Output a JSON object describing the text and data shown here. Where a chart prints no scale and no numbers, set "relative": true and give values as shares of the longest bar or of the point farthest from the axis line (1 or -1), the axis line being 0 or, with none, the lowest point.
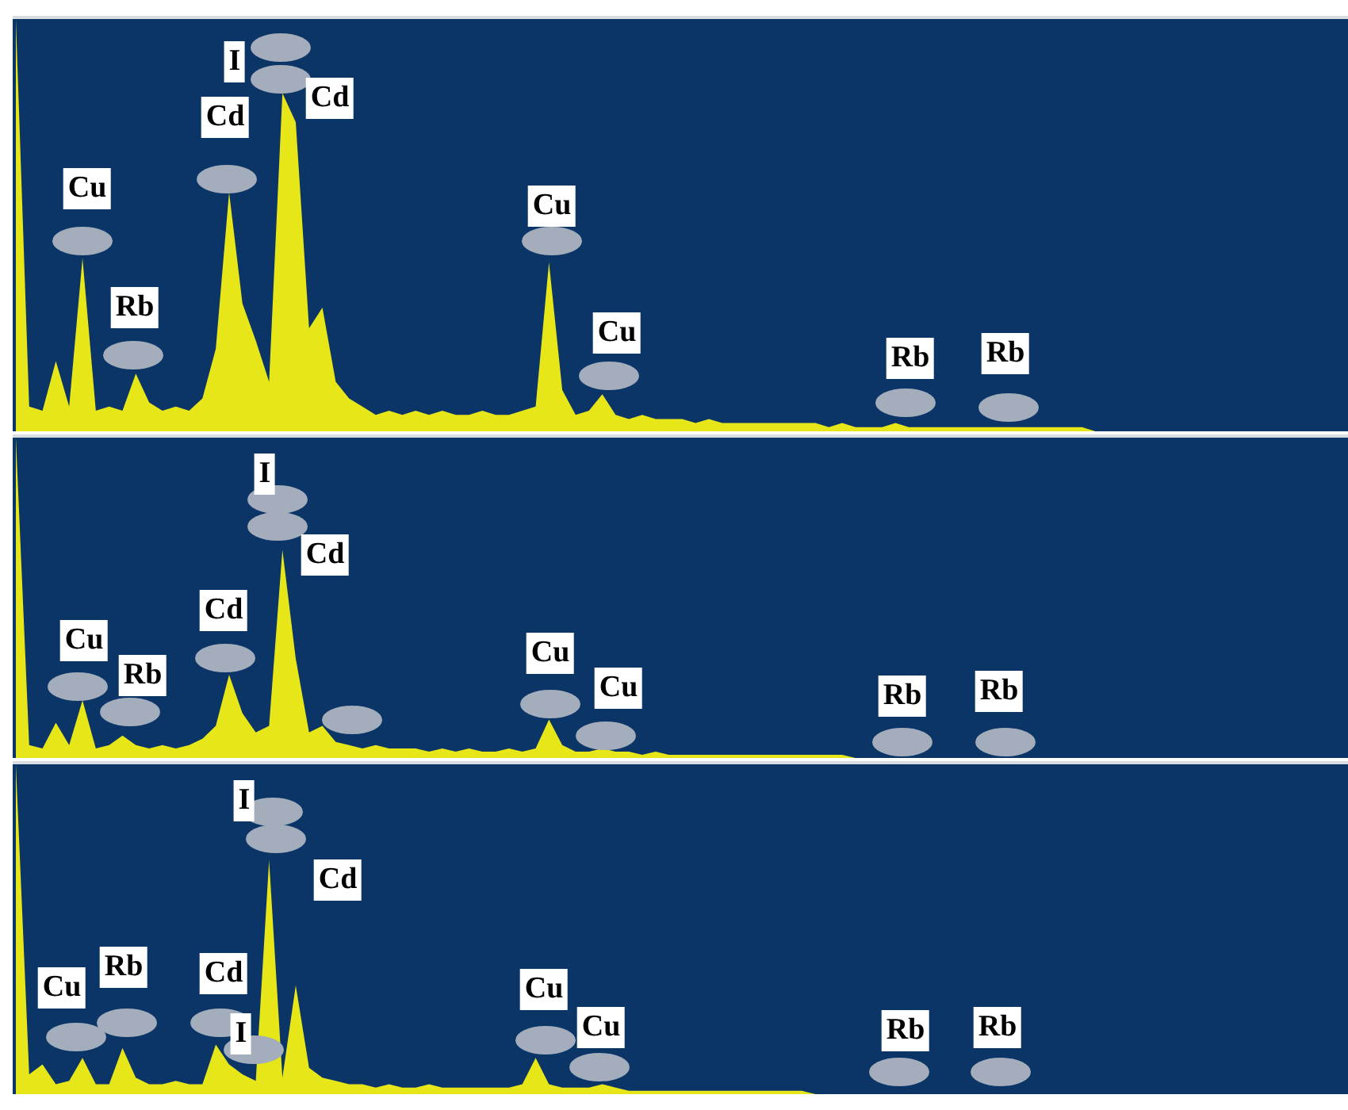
{
  "chart_data": [
    {
      "type": "area",
      "relative": true,
      "categories": [
        null,
        null,
        null,
        null,
        null,
        null,
        null,
        null,
        null,
        null,
        null,
        null,
        null,
        null,
        null,
        null,
        null,
        null,
        null,
        null,
        null,
        null,
        null,
        null,
        null,
        null,
        null,
        null,
        null,
        null,
        null,
        null,
        null,
        null,
        null,
        null,
        null,
        null,
        null,
        null,
        null,
        null,
        null,
        null,
        null,
        null,
        null,
        null,
        null,
        null,
        null,
        null,
        null,
        null,
        null,
        null,
        null,
        null,
        null,
        null,
        null,
        null,
        null,
        null,
        null,
        null,
        null,
        null,
        null,
        null,
        null,
        null,
        null,
        null,
        null,
        null,
        null,
        null,
        null,
        null,
        null,
        null,
        null,
        null,
        null,
        null,
        null,
        null,
        null,
        null,
        null,
        null,
        null,
        null,
        null,
        null,
        null,
        null,
        null,
        null
      ],
      "series": [
        {
          "color": "#e6e619",
          "values": [
            1.0,
            0.06,
            0.05,
            0.17,
            0.06,
            0.42,
            0.05,
            0.06,
            0.05,
            0.14,
            0.07,
            0.05,
            0.06,
            0.05,
            0.08,
            0.2,
            0.58,
            0.31,
            0.22,
            0.12,
            0.82,
            0.75,
            0.25,
            0.3,
            0.12,
            0.08,
            0.06,
            0.04,
            0.05,
            0.04,
            0.05,
            0.04,
            0.05,
            0.04,
            0.04,
            0.05,
            0.04,
            0.04,
            0.05,
            0.06,
            0.41,
            0.1,
            0.04,
            0.05,
            0.09,
            0.04,
            0.03,
            0.04,
            0.03,
            0.03,
            0.03,
            0.02,
            0.03,
            0.02,
            0.02,
            0.02,
            0.02,
            0.02,
            0.02,
            0.02,
            0.02,
            0.01,
            0.02,
            0.01,
            0.01,
            0.01,
            0.02,
            0.01,
            0.01,
            0.01,
            0.01,
            0.01,
            0.01,
            0.01,
            0.01,
            0.01,
            0.01,
            0.01,
            0.01,
            0.01,
            0.01,
            0,
            0,
            0,
            0,
            0,
            0,
            0,
            0,
            0,
            0,
            0,
            0,
            0,
            0,
            0,
            0,
            0,
            0,
            0
          ]
        }
      ],
      "annotations": [
        "Cu",
        "Rb",
        "Cd",
        "I",
        "Cd",
        "Cu",
        "Cu",
        "Rb",
        "Rb"
      ]
    },
    {
      "type": "area",
      "relative": true,
      "categories": [
        null,
        null,
        null,
        null,
        null,
        null,
        null,
        null,
        null,
        null,
        null,
        null,
        null,
        null,
        null,
        null,
        null,
        null,
        null,
        null,
        null,
        null,
        null,
        null,
        null,
        null,
        null,
        null,
        null,
        null,
        null,
        null,
        null,
        null,
        null,
        null,
        null,
        null,
        null,
        null,
        null,
        null,
        null,
        null,
        null,
        null,
        null,
        null,
        null,
        null,
        null,
        null,
        null,
        null,
        null,
        null,
        null,
        null,
        null,
        null,
        null,
        null,
        null,
        null,
        null,
        null,
        null,
        null,
        null,
        null,
        null,
        null,
        null,
        null,
        null,
        null,
        null,
        null,
        null,
        null,
        null,
        null,
        null,
        null,
        null,
        null,
        null,
        null,
        null,
        null,
        null,
        null,
        null,
        null,
        null,
        null,
        null,
        null,
        null,
        null
      ],
      "series": [
        {
          "color": "#e6e619",
          "values": [
            1.0,
            0.04,
            0.03,
            0.11,
            0.04,
            0.18,
            0.03,
            0.04,
            0.07,
            0.04,
            0.03,
            0.04,
            0.03,
            0.04,
            0.06,
            0.1,
            0.26,
            0.14,
            0.08,
            0.1,
            0.65,
            0.31,
            0.08,
            0.1,
            0.05,
            0.04,
            0.03,
            0.04,
            0.03,
            0.03,
            0.03,
            0.02,
            0.03,
            0.02,
            0.03,
            0.02,
            0.02,
            0.03,
            0.02,
            0.03,
            0.12,
            0.04,
            0.02,
            0.02,
            0.03,
            0.02,
            0.02,
            0.01,
            0.02,
            0.01,
            0.01,
            0.01,
            0.01,
            0.01,
            0.01,
            0.01,
            0.01,
            0.01,
            0.01,
            0.01,
            0.01,
            0.01,
            0.01,
            0,
            0,
            0,
            0,
            0,
            0,
            0,
            0,
            0,
            0,
            0,
            0,
            0,
            0,
            0,
            0,
            0,
            0,
            0,
            0,
            0,
            0,
            0,
            0,
            0,
            0,
            0,
            0,
            0,
            0,
            0,
            0,
            0,
            0,
            0,
            0,
            0
          ]
        }
      ],
      "annotations": [
        "Cu",
        "Rb",
        "Cd",
        "I",
        "Cd",
        "Cu",
        "Cu",
        "Rb",
        "Rb"
      ]
    },
    {
      "type": "area",
      "relative": true,
      "categories": [
        null,
        null,
        null,
        null,
        null,
        null,
        null,
        null,
        null,
        null,
        null,
        null,
        null,
        null,
        null,
        null,
        null,
        null,
        null,
        null,
        null,
        null,
        null,
        null,
        null,
        null,
        null,
        null,
        null,
        null,
        null,
        null,
        null,
        null,
        null,
        null,
        null,
        null,
        null,
        null,
        null,
        null,
        null,
        null,
        null,
        null,
        null,
        null,
        null,
        null,
        null,
        null,
        null,
        null,
        null,
        null,
        null,
        null,
        null,
        null,
        null,
        null,
        null,
        null,
        null,
        null,
        null,
        null,
        null,
        null,
        null,
        null,
        null,
        null,
        null,
        null,
        null,
        null,
        null,
        null,
        null,
        null,
        null,
        null,
        null,
        null,
        null,
        null,
        null,
        null,
        null,
        null,
        null,
        null,
        null,
        null,
        null,
        null,
        null,
        null
      ],
      "series": [
        {
          "color": "#e6e619",
          "values": [
            1.0,
            0.06,
            0.09,
            0.03,
            0.04,
            0.11,
            0.03,
            0.03,
            0.14,
            0.05,
            0.03,
            0.03,
            0.04,
            0.03,
            0.03,
            0.15,
            0.09,
            0.06,
            0.04,
            0.71,
            0.05,
            0.33,
            0.08,
            0.05,
            0.04,
            0.03,
            0.03,
            0.02,
            0.03,
            0.02,
            0.02,
            0.03,
            0.02,
            0.02,
            0.02,
            0.02,
            0.02,
            0.02,
            0.03,
            0.11,
            0.03,
            0.02,
            0.02,
            0.02,
            0.03,
            0.02,
            0.01,
            0.01,
            0.01,
            0.01,
            0.01,
            0.01,
            0.01,
            0.01,
            0.01,
            0.01,
            0.01,
            0.01,
            0.01,
            0.01,
            0,
            0,
            0,
            0,
            0,
            0,
            0,
            0,
            0,
            0,
            0,
            0,
            0,
            0,
            0,
            0,
            0,
            0,
            0,
            0,
            0,
            0,
            0,
            0,
            0,
            0,
            0,
            0,
            0,
            0,
            0,
            0,
            0,
            0,
            0,
            0,
            0,
            0,
            0,
            0
          ]
        }
      ],
      "annotations": [
        "Cu",
        "Rb",
        "Cd",
        "I",
        "I",
        "Cd",
        "Cu",
        "Cu",
        "Rb",
        "Rb"
      ]
    }
  ]
}
